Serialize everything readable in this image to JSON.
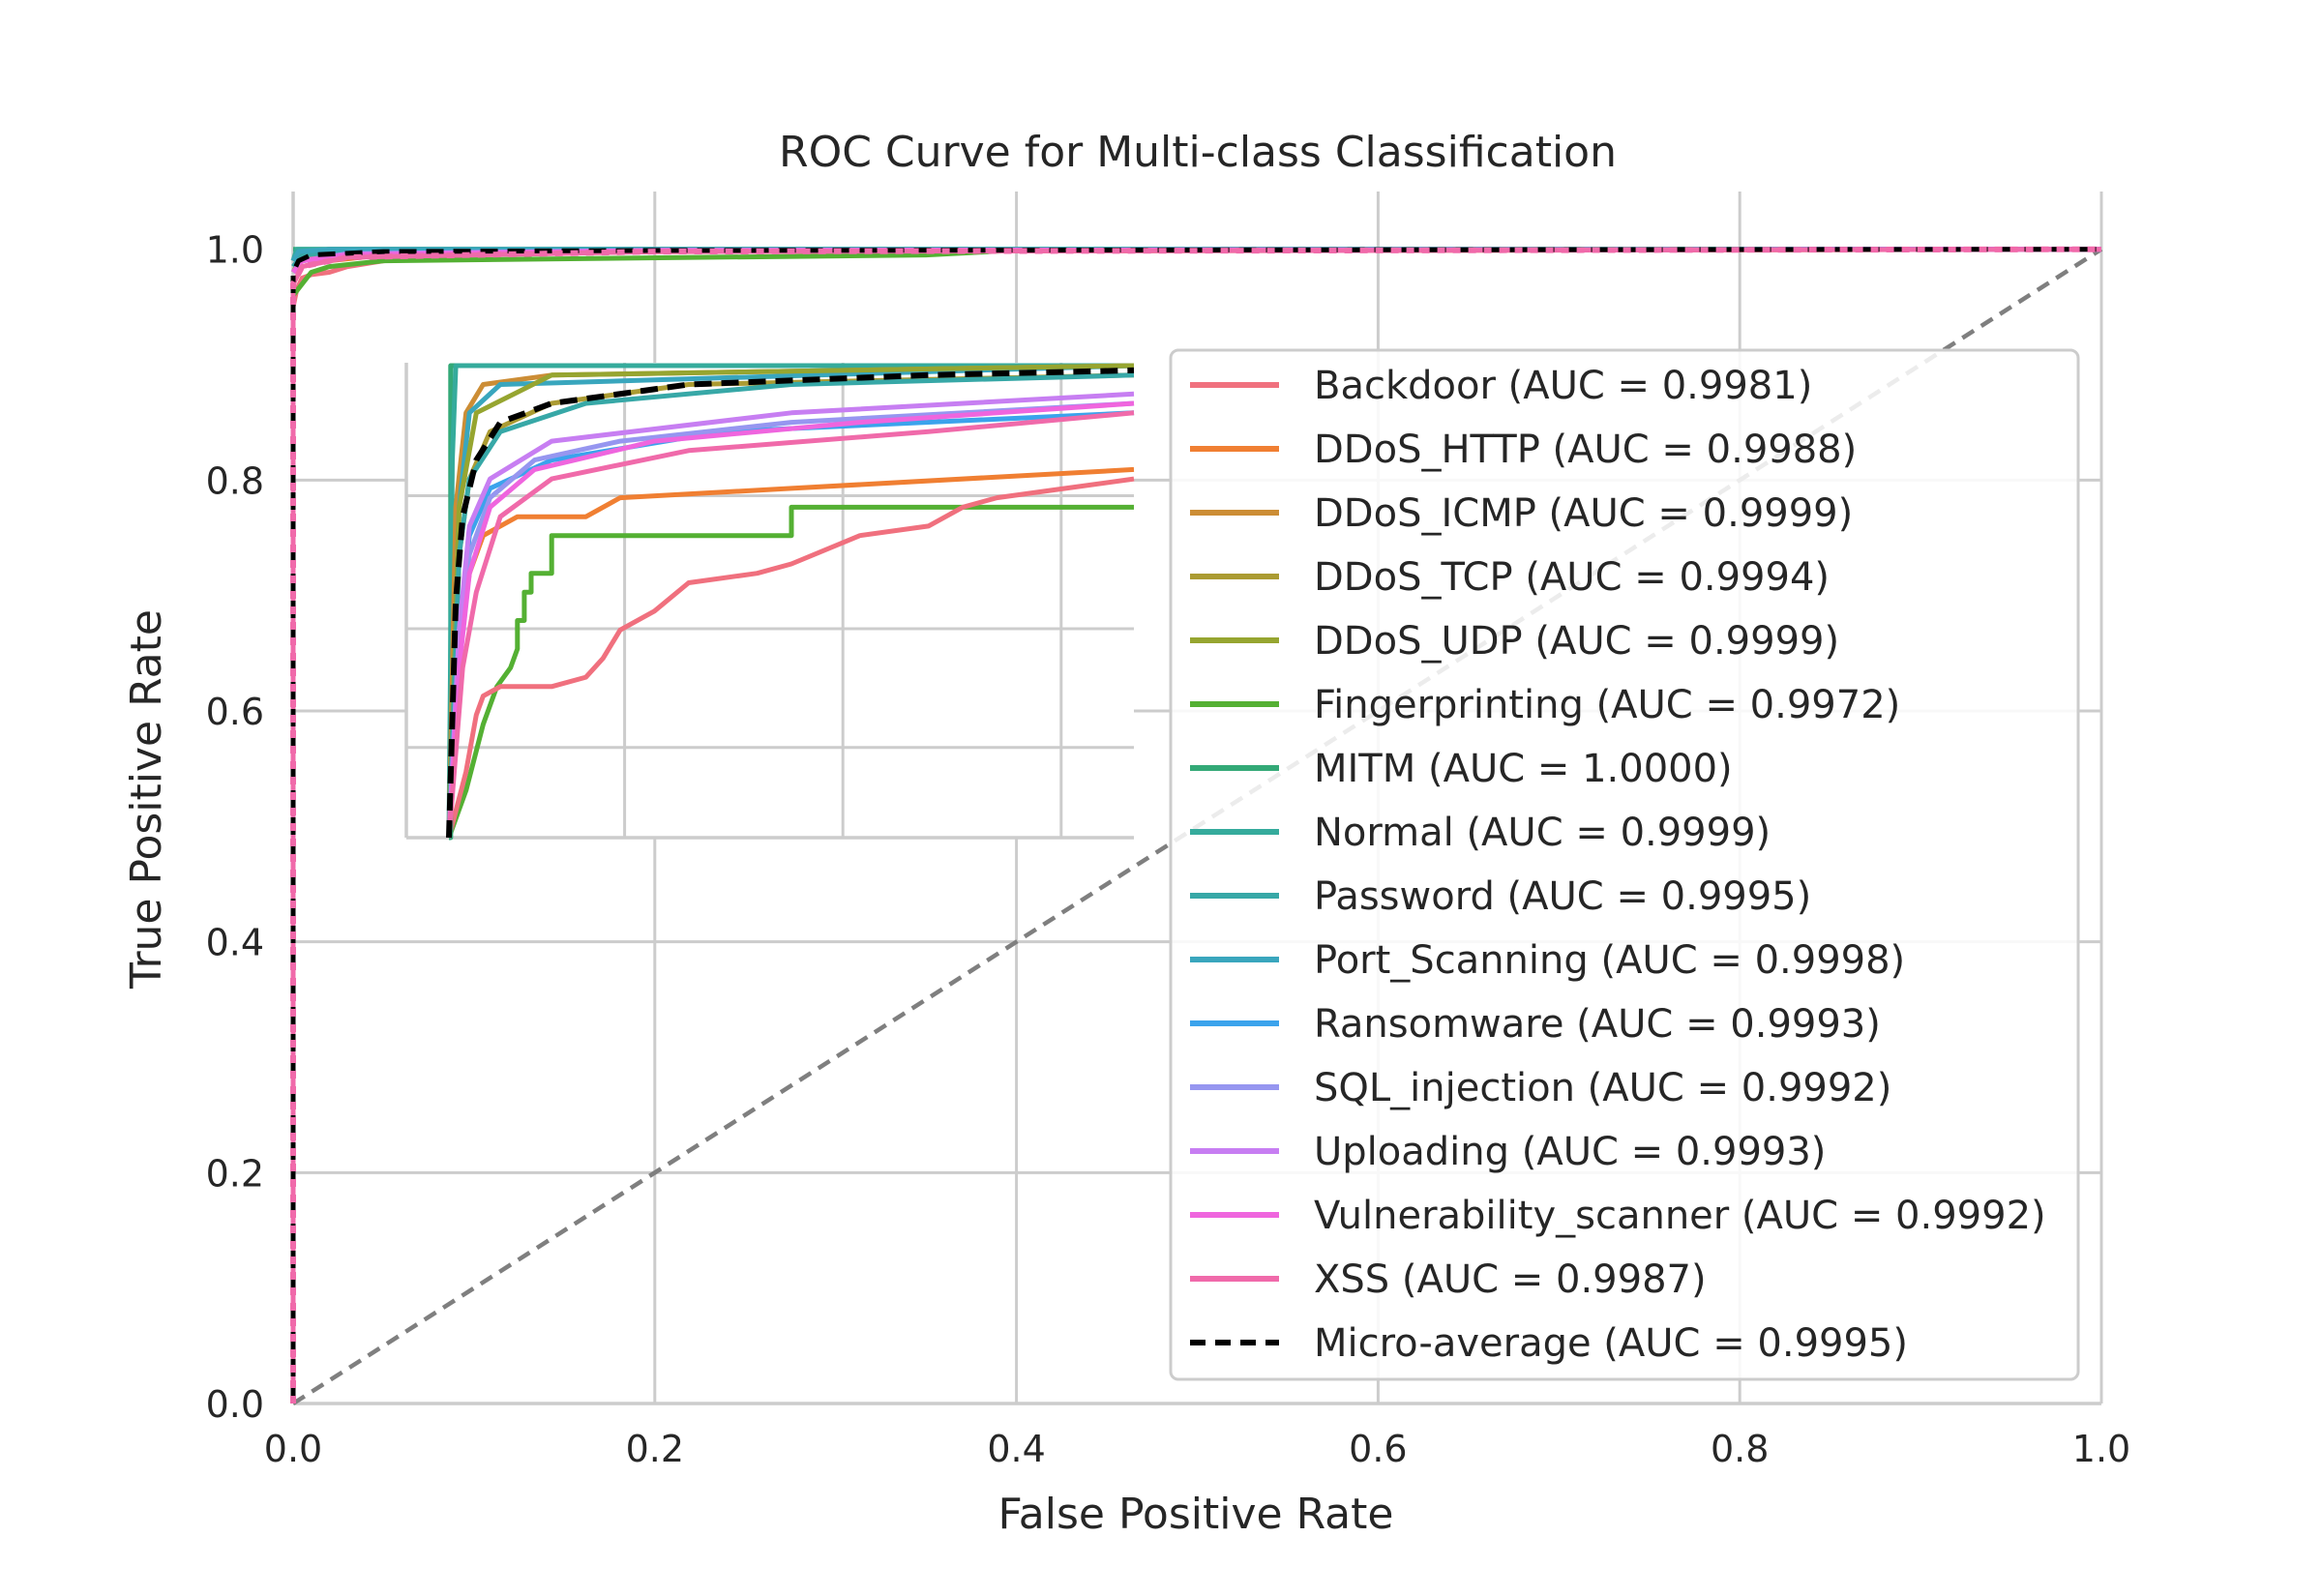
{
  "chart_data": {
    "type": "line",
    "title": "ROC Curve for Multi-class Classification",
    "xlabel": "False Positive Rate",
    "ylabel": "True Positive Rate",
    "xlim": [
      0.0,
      1.0
    ],
    "ylim": [
      0.0,
      1.05
    ],
    "xticks": [
      "0.0",
      "0.2",
      "0.4",
      "0.6",
      "0.8",
      "1.0"
    ],
    "yticks": [
      "0.0",
      "0.2",
      "0.4",
      "0.6",
      "0.8",
      "1.0"
    ],
    "grid": true,
    "legend_position": "center-right",
    "diagonal": {
      "style": "dashed",
      "color": "#7f7f7f",
      "points": [
        [
          0,
          0
        ],
        [
          1,
          1
        ]
      ]
    },
    "series": [
      {
        "name": "Backdoor",
        "auc": "0.9981",
        "label": "Backdoor (AUC = 0.9981)",
        "color": "#f0707e",
        "style": "solid",
        "points": [
          [
            0,
            0.95
          ],
          [
            0.002,
            0.965
          ],
          [
            0.005,
            0.975
          ],
          [
            0.01,
            0.978
          ],
          [
            0.02,
            0.98
          ],
          [
            0.03,
            0.985
          ],
          [
            0.05,
            0.99
          ],
          [
            0.1,
            0.995
          ],
          [
            0.2,
            0.998
          ],
          [
            0.5,
            1.0
          ],
          [
            1,
            1.0
          ]
        ]
      },
      {
        "name": "DDoS_HTTP",
        "auc": "0.9988",
        "label": "DDoS_HTTP (AUC = 0.9988)",
        "color": "#f07f32",
        "style": "solid",
        "points": [
          [
            0,
            0.97
          ],
          [
            0.005,
            0.985
          ],
          [
            0.02,
            0.99
          ],
          [
            0.05,
            0.995
          ],
          [
            0.2,
            0.998
          ],
          [
            1,
            1.0
          ]
        ]
      },
      {
        "name": "DDoS_ICMP",
        "auc": "0.9999",
        "label": "DDoS_ICMP (AUC = 0.9999)",
        "color": "#cc8d35",
        "style": "solid",
        "points": [
          [
            0,
            0.99
          ],
          [
            0.003,
            0.998
          ],
          [
            0.02,
            1.0
          ],
          [
            1,
            1.0
          ]
        ]
      },
      {
        "name": "DDoS_TCP",
        "auc": "0.9994",
        "label": "DDoS_TCP (AUC = 0.9994)",
        "color": "#ab9b32",
        "style": "solid",
        "points": [
          [
            0,
            0.98
          ],
          [
            0.004,
            0.992
          ],
          [
            0.02,
            0.997
          ],
          [
            0.1,
            0.999
          ],
          [
            1,
            1.0
          ]
        ]
      },
      {
        "name": "DDoS_UDP",
        "auc": "0.9999",
        "label": "DDoS_UDP (AUC = 0.9999)",
        "color": "#96a530",
        "style": "solid",
        "points": [
          [
            0,
            0.99
          ],
          [
            0.003,
            0.998
          ],
          [
            0.02,
            1.0
          ],
          [
            1,
            1.0
          ]
        ]
      },
      {
        "name": "Fingerprinting",
        "auc": "0.9972",
        "label": "Fingerprinting (AUC = 0.9972)",
        "color": "#54b033",
        "style": "solid",
        "points": [
          [
            0,
            0.96
          ],
          [
            0.01,
            0.98
          ],
          [
            0.02,
            0.985
          ],
          [
            0.05,
            0.99
          ],
          [
            0.35,
            0.995
          ],
          [
            0.41,
            1.0
          ],
          [
            1,
            1.0
          ]
        ]
      },
      {
        "name": "MITM",
        "auc": "1.0000",
        "label": "MITM (AUC = 1.0000)",
        "color": "#33a977",
        "style": "solid",
        "points": [
          [
            0,
            1.0
          ],
          [
            1,
            1.0
          ]
        ]
      },
      {
        "name": "Normal",
        "auc": "0.9999",
        "label": "Normal (AUC = 0.9999)",
        "color": "#35ab9c",
        "style": "solid",
        "points": [
          [
            0,
            0.99
          ],
          [
            0.002,
            1.0
          ],
          [
            1,
            1.0
          ]
        ]
      },
      {
        "name": "Password",
        "auc": "0.9995",
        "label": "Password (AUC = 0.9995)",
        "color": "#37a8a7",
        "style": "solid",
        "points": [
          [
            0,
            0.985
          ],
          [
            0.005,
            0.995
          ],
          [
            0.03,
            0.999
          ],
          [
            1,
            1.0
          ]
        ]
      },
      {
        "name": "Port_Scanning",
        "auc": "0.9998",
        "label": "Port_Scanning (AUC = 0.9998)",
        "color": "#39a6bd",
        "style": "solid",
        "points": [
          [
            0,
            0.99
          ],
          [
            0.003,
            0.998
          ],
          [
            0.02,
            1.0
          ],
          [
            1,
            1.0
          ]
        ]
      },
      {
        "name": "Ransomware",
        "auc": "0.9993",
        "label": "Ransomware (AUC = 0.9993)",
        "color": "#3ba3ec",
        "style": "solid",
        "points": [
          [
            0,
            0.98
          ],
          [
            0.005,
            0.99
          ],
          [
            0.03,
            0.996
          ],
          [
            0.2,
            0.999
          ],
          [
            1,
            1.0
          ]
        ]
      },
      {
        "name": "SQL_injection",
        "auc": "0.9992",
        "label": "SQL_injection (AUC = 0.9992)",
        "color": "#9696f0",
        "style": "solid",
        "points": [
          [
            0,
            0.98
          ],
          [
            0.005,
            0.99
          ],
          [
            0.03,
            0.995
          ],
          [
            0.2,
            0.999
          ],
          [
            1,
            1.0
          ]
        ]
      },
      {
        "name": "Uploading",
        "auc": "0.9993",
        "label": "Uploading (AUC = 0.9993)",
        "color": "#c77ef2",
        "style": "solid",
        "points": [
          [
            0,
            0.98
          ],
          [
            0.005,
            0.99
          ],
          [
            0.03,
            0.996
          ],
          [
            0.2,
            0.999
          ],
          [
            1,
            1.0
          ]
        ]
      },
      {
        "name": "Vulnerability_scanner",
        "auc": "0.9992",
        "label": "Vulnerability_scanner (AUC = 0.9992)",
        "color": "#ef65de",
        "style": "solid",
        "points": [
          [
            0,
            0.98
          ],
          [
            0.005,
            0.99
          ],
          [
            0.03,
            0.995
          ],
          [
            0.2,
            0.999
          ],
          [
            1,
            1.0
          ]
        ]
      },
      {
        "name": "XSS",
        "auc": "0.9987",
        "label": "XSS (AUC = 0.9987)",
        "color": "#f06aaa",
        "style": "solid",
        "points": [
          [
            0,
            0.0
          ],
          [
            0,
            0.97
          ],
          [
            0.005,
            0.985
          ],
          [
            0.03,
            0.993
          ],
          [
            0.2,
            0.998
          ],
          [
            1,
            1.0
          ]
        ]
      },
      {
        "name": "Micro-average",
        "auc": "0.9995",
        "label": "Micro-average (AUC = 0.9995)",
        "color": "#000000",
        "style": "dashed",
        "points": [
          [
            0,
            0.0
          ],
          [
            0,
            0.98
          ],
          [
            0.003,
            0.99
          ],
          [
            0.01,
            0.995
          ],
          [
            0.05,
            0.998
          ],
          [
            0.2,
            0.999
          ],
          [
            1,
            1.0
          ]
        ]
      }
    ],
    "inset": {
      "description": "zoomed view of the upper-left corner",
      "xlim": [
        0.0,
        0.2
      ],
      "ylim": [
        0.95,
        1.0
      ],
      "curves": [
        {
          "name": "Fingerprinting",
          "points": [
            [
              0.0,
              0.95
            ],
            [
              0.005,
              0.955
            ],
            [
              0.01,
              0.962
            ],
            [
              0.014,
              0.966
            ],
            [
              0.018,
              0.968
            ],
            [
              0.02,
              0.97
            ],
            [
              0.02,
              0.973
            ],
            [
              0.022,
              0.973
            ],
            [
              0.022,
              0.976
            ],
            [
              0.024,
              0.976
            ],
            [
              0.024,
              0.978
            ],
            [
              0.03,
              0.978
            ],
            [
              0.03,
              0.982
            ],
            [
              0.1,
              0.982
            ],
            [
              0.1,
              0.985
            ],
            [
              0.2,
              0.985
            ]
          ]
        },
        {
          "name": "Backdoor",
          "points": [
            [
              0.0,
              0.95
            ],
            [
              0.005,
              0.957
            ],
            [
              0.008,
              0.963
            ],
            [
              0.01,
              0.965
            ],
            [
              0.015,
              0.966
            ],
            [
              0.03,
              0.966
            ],
            [
              0.04,
              0.967
            ],
            [
              0.045,
              0.969
            ],
            [
              0.05,
              0.972
            ],
            [
              0.06,
              0.974
            ],
            [
              0.07,
              0.977
            ],
            [
              0.09,
              0.978
            ],
            [
              0.1,
              0.979
            ],
            [
              0.12,
              0.982
            ],
            [
              0.14,
              0.983
            ],
            [
              0.15,
              0.985
            ],
            [
              0.16,
              0.986
            ],
            [
              0.18,
              0.987
            ],
            [
              0.2,
              0.988
            ]
          ]
        },
        {
          "name": "DDoS_HTTP",
          "points": [
            [
              0.0,
              0.95
            ],
            [
              0.003,
              0.97
            ],
            [
              0.006,
              0.978
            ],
            [
              0.01,
              0.982
            ],
            [
              0.015,
              0.983
            ],
            [
              0.02,
              0.984
            ],
            [
              0.04,
              0.984
            ],
            [
              0.05,
              0.986
            ],
            [
              0.1,
              0.987
            ],
            [
              0.2,
              0.989
            ]
          ]
        },
        {
          "name": "MITM",
          "points": [
            [
              0.0,
              0.95
            ],
            [
              0.0005,
              0.95
            ],
            [
              0.0005,
              1.0
            ],
            [
              0.2,
              1.0
            ]
          ]
        },
        {
          "name": "Normal",
          "points": [
            [
              0.0,
              0.95
            ],
            [
              0.001,
              0.99
            ],
            [
              0.002,
              1.0
            ],
            [
              0.2,
              1.0
            ]
          ]
        },
        {
          "name": "DDoS_ICMP",
          "points": [
            [
              0.0,
              0.95
            ],
            [
              0.002,
              0.985
            ],
            [
              0.005,
              0.995
            ],
            [
              0.01,
              0.998
            ],
            [
              0.03,
              0.999
            ],
            [
              0.2,
              1.0
            ]
          ]
        },
        {
          "name": "Port_Scanning",
          "points": [
            [
              0.0,
              0.95
            ],
            [
              0.003,
              0.985
            ],
            [
              0.006,
              0.995
            ],
            [
              0.015,
              0.998
            ],
            [
              0.2,
              1.0
            ]
          ]
        },
        {
          "name": "DDoS_UDP",
          "points": [
            [
              0.0,
              0.95
            ],
            [
              0.003,
              0.985
            ],
            [
              0.008,
              0.995
            ],
            [
              0.03,
              0.999
            ],
            [
              0.2,
              1.0
            ]
          ]
        },
        {
          "name": "DDoS_TCP",
          "points": [
            [
              0.0,
              0.95
            ],
            [
              0.003,
              0.98
            ],
            [
              0.006,
              0.988
            ],
            [
              0.012,
              0.993
            ],
            [
              0.03,
              0.996
            ],
            [
              0.07,
              0.998
            ],
            [
              0.2,
              0.999
            ]
          ]
        },
        {
          "name": "Password",
          "points": [
            [
              0.0,
              0.95
            ],
            [
              0.003,
              0.98
            ],
            [
              0.006,
              0.988
            ],
            [
              0.015,
              0.993
            ],
            [
              0.04,
              0.996
            ],
            [
              0.1,
              0.998
            ],
            [
              0.2,
              0.999
            ]
          ]
        },
        {
          "name": "Ransomware",
          "points": [
            [
              0.0,
              0.95
            ],
            [
              0.003,
              0.972
            ],
            [
              0.006,
              0.982
            ],
            [
              0.012,
              0.987
            ],
            [
              0.03,
              0.99
            ],
            [
              0.08,
              0.993
            ],
            [
              0.2,
              0.995
            ]
          ]
        },
        {
          "name": "SQL_injection",
          "points": [
            [
              0.0,
              0.95
            ],
            [
              0.003,
              0.97
            ],
            [
              0.006,
              0.98
            ],
            [
              0.012,
              0.986
            ],
            [
              0.025,
              0.99
            ],
            [
              0.05,
              0.992
            ],
            [
              0.1,
              0.994
            ],
            [
              0.2,
              0.996
            ]
          ]
        },
        {
          "name": "Uploading",
          "points": [
            [
              0.0,
              0.95
            ],
            [
              0.003,
              0.972
            ],
            [
              0.006,
              0.983
            ],
            [
              0.012,
              0.988
            ],
            [
              0.03,
              0.992
            ],
            [
              0.1,
              0.995
            ],
            [
              0.2,
              0.997
            ]
          ]
        },
        {
          "name": "Vulnerability_scanner",
          "points": [
            [
              0.0,
              0.95
            ],
            [
              0.003,
              0.968
            ],
            [
              0.006,
              0.978
            ],
            [
              0.012,
              0.985
            ],
            [
              0.025,
              0.989
            ],
            [
              0.06,
              0.992
            ],
            [
              0.12,
              0.994
            ],
            [
              0.2,
              0.996
            ]
          ]
        },
        {
          "name": "XSS",
          "points": [
            [
              0.0,
              0.95
            ],
            [
              0.004,
              0.968
            ],
            [
              0.008,
              0.976
            ],
            [
              0.015,
              0.984
            ],
            [
              0.03,
              0.988
            ],
            [
              0.07,
              0.991
            ],
            [
              0.14,
              0.993
            ],
            [
              0.2,
              0.995
            ]
          ]
        },
        {
          "name": "Micro-average",
          "points": [
            [
              0.0,
              0.95
            ],
            [
              0.002,
              0.975
            ],
            [
              0.004,
              0.984
            ],
            [
              0.008,
              0.99
            ],
            [
              0.015,
              0.994
            ],
            [
              0.03,
              0.996
            ],
            [
              0.07,
              0.998
            ],
            [
              0.14,
              0.999
            ],
            [
              0.2,
              0.9995
            ]
          ]
        }
      ]
    }
  }
}
